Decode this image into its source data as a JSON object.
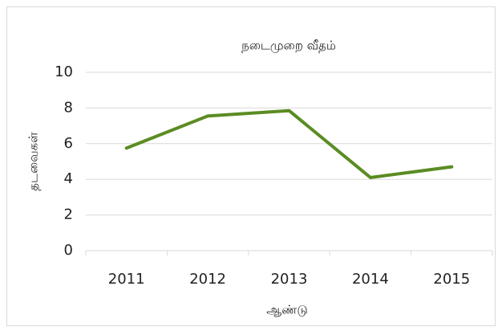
{
  "chart_data": {
    "type": "line",
    "title": "நடைமுறை வீதம்",
    "x_label": "ஆண்டு",
    "y_label": "தடவைகள்",
    "categories": [
      "2011",
      "2012",
      "2013",
      "2014",
      "2015"
    ],
    "series": [
      {
        "name": "தடவைகள்",
        "color": "#5b8c23",
        "values": [
          5.75,
          7.55,
          7.85,
          4.1,
          4.7
        ]
      }
    ],
    "ylim": [
      0,
      10
    ],
    "yticks": [
      0,
      2,
      4,
      6,
      8,
      10
    ],
    "grid": true
  }
}
